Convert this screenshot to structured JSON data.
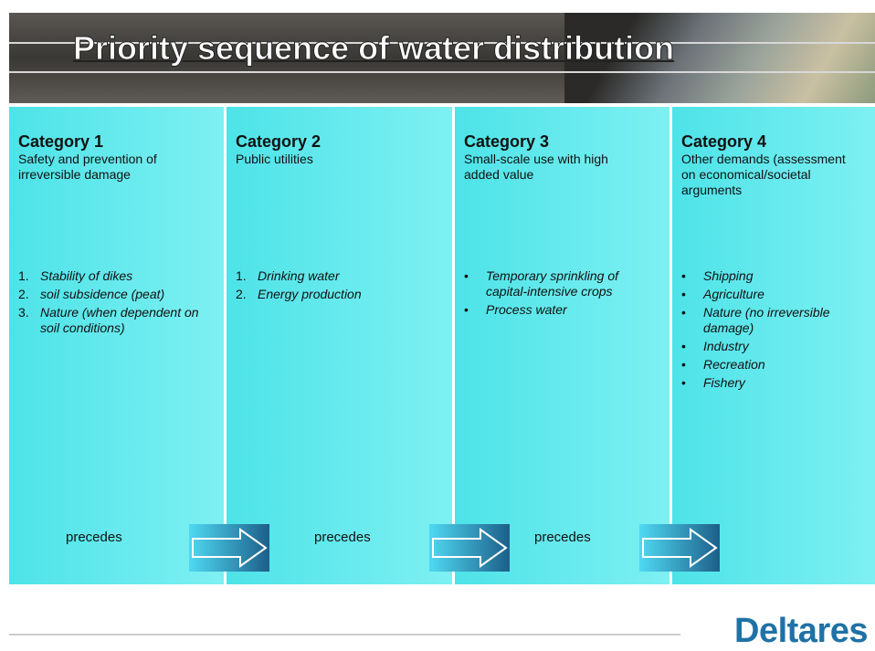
{
  "header": {
    "title": "Priority sequence of water distribution"
  },
  "columns": [
    {
      "heading": "Category 1",
      "description": "Safety and prevention of irreversible damage",
      "items": [
        {
          "marker": "1.",
          "text": "Stability of dikes"
        },
        {
          "marker": "2.",
          "text": "soil subsidence (peat)"
        },
        {
          "marker": "3.",
          "text": "Nature (when dependent on soil conditions)"
        }
      ]
    },
    {
      "heading": "Category 2",
      "description": "Public utilities",
      "items": [
        {
          "marker": "1.",
          "text": "Drinking water"
        },
        {
          "marker": "2.",
          "text": "Energy production"
        }
      ]
    },
    {
      "heading": "Category 3",
      "description": "Small-scale use with high added value",
      "items": [
        {
          "marker": "•",
          "text": "Temporary sprinkling of capital-intensive crops"
        },
        {
          "marker": "•",
          "text": "Process water"
        }
      ]
    },
    {
      "heading": "Category 4",
      "description": "Other demands (assessment on economical/societal arguments",
      "items": [
        {
          "marker": "•",
          "text": "Shipping"
        },
        {
          "marker": "•",
          "text": "Agriculture"
        },
        {
          "marker": "•",
          "text": "Nature (no irreversible damage)"
        },
        {
          "marker": "•",
          "text": "Industry"
        },
        {
          "marker": "•",
          "text": "Recreation"
        },
        {
          "marker": "•",
          "text": "Fishery"
        }
      ]
    }
  ],
  "connectors": [
    "precedes",
    "precedes",
    "precedes"
  ],
  "logo": "Deltares"
}
